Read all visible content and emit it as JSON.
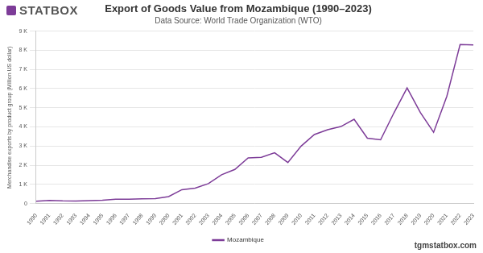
{
  "chart_data": {
    "type": "line",
    "title": "Export of Goods Value from Mozambique (1990–2023)",
    "subtitle": "Data Source: World Trade Organization (WTO)",
    "y_label": "Merchandise exports by product group (Million US dollar)",
    "annotations": [
      "STATBOX",
      "tgmstatbox.com"
    ],
    "categories": [
      "1990",
      "1991",
      "1992",
      "1993",
      "1994",
      "1995",
      "1996",
      "1997",
      "1998",
      "1999",
      "2000",
      "2001",
      "2002",
      "2003",
      "2004",
      "2005",
      "2006",
      "2007",
      "2008",
      "2009",
      "2010",
      "2011",
      "2012",
      "2013",
      "2014",
      "2015",
      "2016",
      "2017",
      "2018",
      "2019",
      "2020",
      "2021",
      "2022",
      "2023"
    ],
    "series": [
      {
        "name": "Mozambique",
        "color": "#7d3c98",
        "values": [
          126,
          162,
          139,
          132,
          150,
          174,
          226,
          230,
          245,
          263,
          364,
          726,
          809,
          1044,
          1504,
          1783,
          2381,
          2412,
          2653,
          2147,
          3000,
          3604,
          3856,
          4020,
          4400,
          3413,
          3328,
          4725,
          6035,
          4750,
          3720,
          5600,
          8300,
          8280
        ]
      }
    ],
    "ylim": [
      0,
      9000
    ],
    "yticks": [
      0,
      {
        "value": 1000,
        "label": "1 K"
      },
      {
        "value": 2000,
        "label": "2 K"
      },
      {
        "value": 3000,
        "label": "3 K"
      },
      {
        "value": 4000,
        "label": "4 K"
      },
      {
        "value": 5000,
        "label": "5 K"
      },
      {
        "value": 6000,
        "label": "6 K"
      },
      {
        "value": 7000,
        "label": "7 K"
      },
      {
        "value": 8000,
        "label": "8 K"
      },
      {
        "value": 9000,
        "label": "9 K"
      }
    ],
    "grid": true,
    "legend": "bottom"
  }
}
